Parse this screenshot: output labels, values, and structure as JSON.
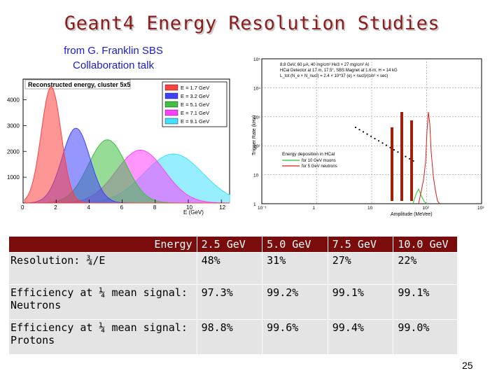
{
  "slide": {
    "title": "Geant4 Energy Resolution Studies",
    "credit_line1": "from G. Franklin SBS",
    "credit_line2": "Collaboration talk",
    "page_number": "25"
  },
  "left_plot": {
    "title": "Reconstructed energy, cluster 5x5",
    "xlabel": "E (GeV)",
    "legend": [
      "E = 1.7 GeV",
      "E = 3.2 GeV",
      "E = 5.1 GeV",
      "E = 7.1 GeV",
      "E = 9.1 GeV"
    ],
    "colors": [
      "#ff4040",
      "#4040ff",
      "#40c040",
      "#ff40ff",
      "#40e0ff"
    ],
    "peaks": [
      1.7,
      3.2,
      5.1,
      7.1,
      9.1
    ],
    "heights": [
      4500,
      2900,
      2450,
      2050,
      1900
    ],
    "x_ticks": [
      "0",
      "2",
      "4",
      "6",
      "8",
      "10",
      "12"
    ],
    "y_ticks": [
      "1000",
      "2000",
      "3000",
      "4000"
    ]
  },
  "right_plot": {
    "info_line1": "8.8 GeV, 60 μA, 40 mg/cm² He3 + 27 mg/cm² Al",
    "info_line2": "HCal Detector at 17 m, 17.5°, SBS Magnet at 1.6 m, H = 14 kG",
    "info_line3": "L_tot (N_e × N_nucl) = 2.4 × 10^37 (e) × nucl)/(cm² × sec)",
    "ylabel": "Trigger Rate (kHz)",
    "xlabel": "Amplitude (MeVee)",
    "legend_title": "Energy deposition in HCal",
    "legend_muons": "for 10 GeV muons",
    "legend_neutrons": "for 5 GeV neutrons",
    "y_ticks": [
      "1",
      "10",
      "10²",
      "10³",
      "10⁴",
      "10⁵"
    ],
    "x_ticks": [
      "10⁻¹",
      "1",
      "10",
      "10²",
      "10³"
    ]
  },
  "table": {
    "header": [
      "Energy",
      "2.5 GeV",
      "5.0 GeV",
      "7.5 GeV",
      "10.0 GeV"
    ],
    "rows": [
      {
        "label": "Resolution: ¾/E",
        "values": [
          "48%",
          "31%",
          "27%",
          "22%"
        ]
      },
      {
        "label": "Efficiency at ¼ mean signal: Neutrons",
        "values": [
          "97.3%",
          "99.2%",
          "99.1%",
          "99.1%"
        ]
      },
      {
        "label": "Efficiency at ¼ mean signal: Protons",
        "values": [
          "98.8%",
          "99.6%",
          "99.4%",
          "99.0%"
        ]
      }
    ]
  }
}
